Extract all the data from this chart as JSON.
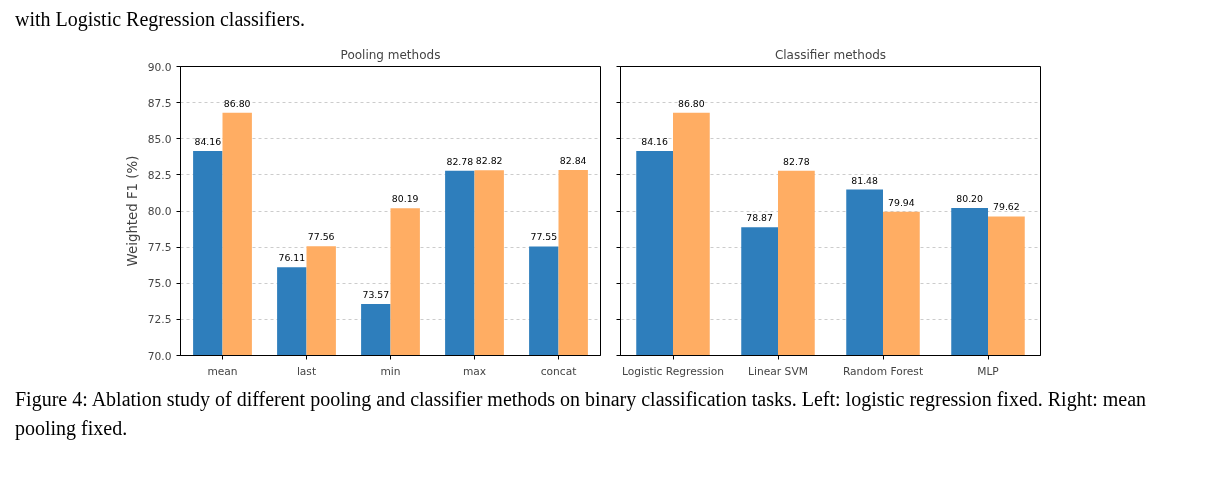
{
  "chart_data": [
    {
      "type": "bar",
      "title": "Pooling methods",
      "ylabel": "Weighted F1 (%)",
      "categories": [
        "mean",
        "last",
        "min",
        "max",
        "concat"
      ],
      "series": [
        {
          "color": "#2e7ebc",
          "values": [
            84.16,
            76.11,
            73.57,
            82.78,
            77.55
          ],
          "value_labels": [
            "84.16",
            "76.11",
            "73.57",
            "82.78",
            "77.55"
          ]
        },
        {
          "color": "#ffad63",
          "values": [
            86.8,
            77.56,
            80.19,
            82.82,
            82.84
          ],
          "value_labels": [
            "86.80",
            "77.56",
            "80.19",
            "82.82",
            "82.84"
          ]
        }
      ],
      "ylim": [
        70,
        90
      ],
      "yticks": [
        {
          "value": 70,
          "label": "70.0"
        },
        {
          "value": 72.5,
          "label": "72.5"
        },
        {
          "value": 75,
          "label": "75.0"
        },
        {
          "value": 77.5,
          "label": "77.5"
        },
        {
          "value": 80,
          "label": "80.0"
        },
        {
          "value": 82.5,
          "label": "82.5"
        },
        {
          "value": 85,
          "label": "85.0"
        },
        {
          "value": 87.5,
          "label": "87.5"
        },
        {
          "value": 90,
          "label": "90.0"
        }
      ],
      "grid": "y",
      "annotations": [
        "with Logistic Regression classifiers."
      ]
    },
    {
      "type": "bar",
      "title": "Classifier methods",
      "categories": [
        "Logistic Regression",
        "Linear SVM",
        "Random Forest",
        "MLP"
      ],
      "series": [
        {
          "color": "#2e7ebc",
          "values": [
            84.16,
            78.87,
            81.48,
            80.2
          ],
          "value_labels": [
            "84.16",
            "78.87",
            "81.48",
            "80.20"
          ]
        },
        {
          "color": "#ffad63",
          "values": [
            86.8,
            82.78,
            79.94,
            79.62
          ],
          "value_labels": [
            "86.80",
            "82.78",
            "79.94",
            "79.62"
          ]
        }
      ],
      "ylim": [
        70,
        90
      ],
      "yticks": [
        70,
        72.5,
        75,
        77.5,
        80,
        82.5,
        85,
        87.5,
        90
      ],
      "grid": "y",
      "tick_labels": "x",
      "annotations": [
        "Figure 4: Ablation study of different pooling and classifier methods on binary classification tasks. Left: logistic regression fixed. Right: mean pooling fixed."
      ]
    }
  ]
}
